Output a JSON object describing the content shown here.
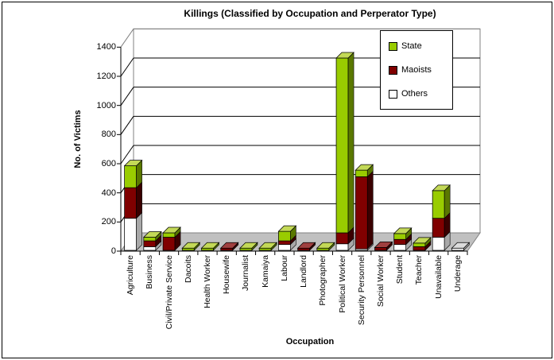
{
  "chart_data": {
    "type": "bar",
    "subtype": "stacked-3d-column",
    "title": "Killings (Classified by Occupation and Perperator Type)",
    "xlabel": "Occupation",
    "ylabel": "No. of Victims",
    "ylim": [
      0,
      1400
    ],
    "yticks": [
      0,
      200,
      400,
      600,
      800,
      1000,
      1200,
      1400
    ],
    "grid": true,
    "legend_position": "top-right-inside",
    "categories": [
      "Agriculture",
      "Business",
      "Civil/Private Service",
      "Dacoits",
      "Health Worker",
      "Housewife",
      "Journalist",
      "Kamaiya",
      "Labour",
      "Landlord",
      "Photographer",
      "Political Worker",
      "Security Personnel",
      "Social Worker",
      "Student",
      "Teacher",
      "Unavailable",
      "Underage"
    ],
    "stack_order_bottom_to_top": [
      "Others",
      "Maoists",
      "State"
    ],
    "series": [
      {
        "name": "State",
        "color": "#99CC00",
        "top_color": "#C3D957",
        "side_color": "#5A7800",
        "values": [
          150,
          25,
          30,
          15,
          15,
          0,
          15,
          15,
          65,
          0,
          15,
          1200,
          45,
          0,
          40,
          25,
          190,
          0
        ]
      },
      {
        "name": "Maoists",
        "color": "#800000",
        "top_color": "#A04040",
        "side_color": "#3A0000",
        "values": [
          210,
          40,
          90,
          0,
          0,
          15,
          0,
          0,
          25,
          15,
          0,
          75,
          495,
          20,
          35,
          25,
          130,
          0
        ]
      },
      {
        "name": "Others",
        "color": "#FFFFFF",
        "top_color": "#DCDCDC",
        "side_color": "#A8A8A8",
        "values": [
          220,
          25,
          0,
          0,
          0,
          0,
          0,
          0,
          40,
          0,
          0,
          45,
          10,
          0,
          40,
          0,
          90,
          15
        ]
      }
    ],
    "style": {
      "background": "#FFFFFF",
      "floor_color": "#C0C0C0",
      "wall_border_color": "#808080",
      "gridline_color": "#000000",
      "axis_color": "#000000"
    }
  }
}
